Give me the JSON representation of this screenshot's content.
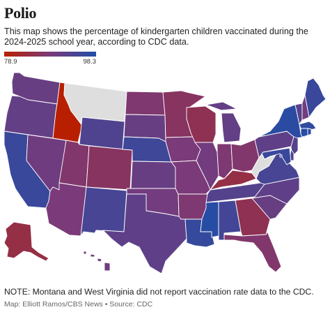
{
  "title": "Polio",
  "subtitle": "This map shows the percentage of kindergarten children vaccinated during the 2024-2025 school year, according to CDC data.",
  "legend": {
    "min_label": "78.9",
    "max_label": "98.3"
  },
  "note": "NOTE: Montana and West Virginia did not report vaccination rate data to the CDC.",
  "credit": "Map: Elliott Ramos/CBS News • Source: CDC",
  "colors": {
    "low": "#b81f00",
    "mid": "#7a3a7a",
    "high": "#1f4ea8",
    "no_data": "#dedede"
  },
  "map_data": {
    "scale_min": 78.9,
    "scale_max": 98.3,
    "states": [
      {
        "id": "WA",
        "value": 90.5
      },
      {
        "id": "OR",
        "value": 91.0
      },
      {
        "id": "CA",
        "value": 95.5
      },
      {
        "id": "NV",
        "value": 89.8
      },
      {
        "id": "ID",
        "value": 78.9
      },
      {
        "id": "MT",
        "value": null
      },
      {
        "id": "WY",
        "value": 93.2
      },
      {
        "id": "UT",
        "value": 87.5
      },
      {
        "id": "AZ",
        "value": 88.5
      },
      {
        "id": "CO",
        "value": 86.5
      },
      {
        "id": "NM",
        "value": 94.0
      },
      {
        "id": "ND",
        "value": 87.8
      },
      {
        "id": "SD",
        "value": 90.5
      },
      {
        "id": "NE",
        "value": 95.0
      },
      {
        "id": "KS",
        "value": 90.5
      },
      {
        "id": "OK",
        "value": 89.5
      },
      {
        "id": "TX",
        "value": 91.5
      },
      {
        "id": "MN",
        "value": 86.5
      },
      {
        "id": "IA",
        "value": 88.5
      },
      {
        "id": "MO",
        "value": 88.5
      },
      {
        "id": "AR",
        "value": 88.0
      },
      {
        "id": "LA",
        "value": 96.0
      },
      {
        "id": "WI",
        "value": 85.5
      },
      {
        "id": "IL",
        "value": 89.5
      },
      {
        "id": "MI",
        "value": 91.0
      },
      {
        "id": "IN",
        "value": 88.0
      },
      {
        "id": "OH",
        "value": 87.5
      },
      {
        "id": "KY",
        "value": 84.5
      },
      {
        "id": "TN",
        "value": 92.5
      },
      {
        "id": "MS",
        "value": 97.5
      },
      {
        "id": "AL",
        "value": 94.5
      },
      {
        "id": "GA",
        "value": 85.5
      },
      {
        "id": "FL",
        "value": 87.5
      },
      {
        "id": "SC",
        "value": 90.5
      },
      {
        "id": "NC",
        "value": 91.5
      },
      {
        "id": "VA",
        "value": 94.0
      },
      {
        "id": "WV",
        "value": null
      },
      {
        "id": "PA",
        "value": 91.5
      },
      {
        "id": "NY",
        "value": 97.0
      },
      {
        "id": "VT",
        "value": 92.0
      },
      {
        "id": "NH",
        "value": 89.5
      },
      {
        "id": "ME",
        "value": 95.5
      },
      {
        "id": "MA",
        "value": 96.5
      },
      {
        "id": "CT",
        "value": 97.5
      },
      {
        "id": "RI",
        "value": 96.5
      },
      {
        "id": "NJ",
        "value": 92.5
      },
      {
        "id": "DE",
        "value": 93.5
      },
      {
        "id": "MD",
        "value": 95.5
      },
      {
        "id": "DC",
        "value": 94.0
      },
      {
        "id": "AK",
        "value": 84.5
      },
      {
        "id": "HI",
        "value": 89.5
      }
    ]
  }
}
